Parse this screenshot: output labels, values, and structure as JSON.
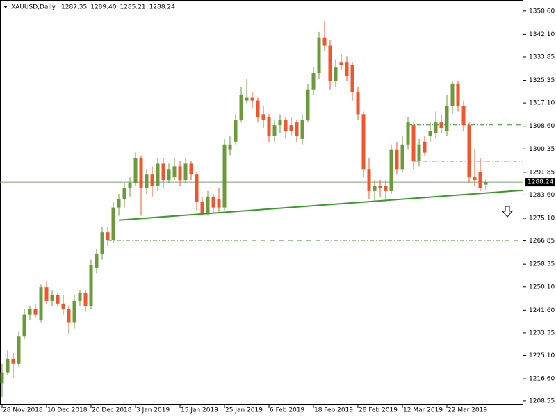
{
  "chart_data": {
    "type": "candlestick",
    "symbol": "XAUUSD,Daily",
    "header_values": [
      "1287.35",
      "1289.40",
      "1285.21",
      "1288.24"
    ],
    "categories": [
      "28 Nov 2018",
      null,
      null,
      null,
      null,
      null,
      null,
      null,
      "10 Dec 2018",
      null,
      null,
      null,
      null,
      null,
      null,
      null,
      "20 Dec 2018",
      null,
      null,
      null,
      null,
      null,
      null,
      null,
      "3 Jan 2019",
      null,
      null,
      null,
      null,
      null,
      null,
      null,
      "15 Jan 2019",
      null,
      null,
      null,
      null,
      null,
      null,
      null,
      "25 Jan 2019",
      null,
      null,
      null,
      null,
      null,
      null,
      null,
      "6 Feb 2019",
      null,
      null,
      null,
      null,
      null,
      null,
      null,
      "18 Feb 2019",
      null,
      null,
      null,
      null,
      null,
      null,
      null,
      "28 Feb 2019",
      null,
      null,
      null,
      null,
      null,
      null,
      null,
      "12 Mar 2019",
      null,
      null,
      null,
      null,
      null,
      null,
      null,
      "22 Mar 2019",
      null,
      null,
      null,
      null,
      null,
      null,
      null
    ],
    "open": [
      1215,
      1219,
      1224,
      1222,
      1232,
      1240,
      1242,
      1238,
      1250,
      1245,
      1247,
      1244,
      1242,
      1237,
      1245,
      1248,
      1243,
      1257,
      1262,
      1270,
      1267,
      1279,
      1282,
      1286,
      1288,
      1297,
      1286,
      1291,
      1287,
      1295,
      1289,
      1290,
      1294,
      1289,
      1295,
      1291,
      1281,
      1277,
      1283,
      1282,
      1279,
      1300,
      1303,
      1311,
      1318,
      1319,
      1318,
      1313,
      1312,
      1305,
      1309,
      1311,
      1309,
      1310,
      1304,
      1311,
      1322,
      1328,
      1341,
      1338,
      1325,
      1332,
      1332,
      1331,
      1321,
      1313,
      1293,
      1285,
      1287,
      1287,
      1285,
      1300,
      1293,
      1302,
      1309,
      1296,
      1303,
      1305,
      1306,
      1310,
      1307,
      1316,
      1324,
      1316,
      1309,
      1290,
      1292,
      1287.35
    ],
    "high": [
      1222,
      1227,
      1226,
      1234,
      1242,
      1243,
      1244,
      1251,
      1252,
      1249,
      1248,
      1247,
      1243,
      1247,
      1249,
      1249,
      1260,
      1264,
      1272,
      1272,
      1281,
      1284,
      1288,
      1290,
      1299,
      1298,
      1293,
      1294,
      1297,
      1297,
      1295,
      1297,
      1296,
      1297,
      1296,
      1292,
      1283,
      1285,
      1284,
      1286,
      1304,
      1305,
      1313,
      1323,
      1326,
      1321,
      1319,
      1316,
      1313,
      1311,
      1313,
      1312,
      1312,
      1311,
      1313,
      1324,
      1330,
      1343,
      1347,
      1340,
      1333,
      1335,
      1334,
      1332,
      1323,
      1314,
      1297,
      1289,
      1289,
      1289,
      1302,
      1303,
      1305,
      1312,
      1310,
      1304,
      1305,
      1310,
      1314,
      1313,
      1320,
      1325,
      1325,
      1318,
      1310,
      1300,
      1297,
      1289.4
    ],
    "low": [
      1210,
      1218,
      1217,
      1221,
      1231,
      1238,
      1239,
      1237,
      1244,
      1243,
      1243,
      1240,
      1233,
      1235,
      1243,
      1241,
      1242,
      1255,
      1260,
      1265,
      1266,
      1276,
      1279,
      1283,
      1287,
      1276,
      1284,
      1283,
      1285,
      1286,
      1288,
      1289,
      1287,
      1288,
      1289,
      1278,
      1276,
      1276,
      1277,
      1277,
      1278,
      1298,
      1302,
      1310,
      1317,
      1315,
      1310,
      1308,
      1303,
      1303,
      1306,
      1304,
      1305,
      1303,
      1302,
      1310,
      1320,
      1326,
      1336,
      1322,
      1323,
      1329,
      1325,
      1318,
      1311,
      1290,
      1282,
      1281,
      1283,
      1281,
      1284,
      1291,
      1292,
      1300,
      1293,
      1294,
      1298,
      1303,
      1304,
      1306,
      1305,
      1313,
      1314,
      1307,
      1288,
      1287,
      1285,
      1285.21
    ],
    "close": [
      1219,
      1224,
      1222,
      1232,
      1240,
      1242,
      1240,
      1250,
      1245,
      1247,
      1244,
      1242,
      1237,
      1245,
      1248,
      1243,
      1258,
      1262,
      1270,
      1267,
      1279,
      1282,
      1286,
      1288,
      1297,
      1286,
      1291,
      1287,
      1295,
      1289,
      1293,
      1294,
      1289,
      1295,
      1291,
      1281,
      1277,
      1283,
      1279,
      1279,
      1302,
      1302,
      1311,
      1320,
      1319,
      1318,
      1312,
      1311,
      1305,
      1309,
      1311,
      1307,
      1307,
      1305,
      1311,
      1322,
      1328,
      1341,
      1338,
      1325,
      1330,
      1331,
      1327,
      1321,
      1313,
      1293,
      1285,
      1287,
      1286,
      1285,
      1300,
      1293,
      1302,
      1310,
      1296,
      1302,
      1299,
      1307,
      1310,
      1308,
      1316,
      1324,
      1316,
      1309,
      1290,
      1289,
      1286,
      1288.24
    ],
    "up_color": "#6b9a3a",
    "down_color": "#f0552b",
    "last_price": 1288.24,
    "trendline": {
      "x": [
        21,
        93.7
      ],
      "y": [
        1274.4,
        1285.3
      ],
      "color": "#3a9a2a"
    },
    "levels": [
      {
        "value": 1309.1,
        "from": 73
      },
      {
        "value": 1295.9,
        "from": 74
      },
      {
        "value": 1267.0,
        "from": 19
      }
    ],
    "ylim": [
      1207.0,
      1354.6
    ],
    "yticks": [
      {
        "value": 1350.6,
        "label": "1350.60"
      },
      {
        "value": 1342.1,
        "label": "1342.10"
      },
      {
        "value": 1333.85,
        "label": "1333.85"
      },
      {
        "value": 1325.35,
        "label": "1325.35"
      },
      {
        "value": 1317.1,
        "label": "1317.10"
      },
      {
        "value": 1308.6,
        "label": "1308.60"
      },
      {
        "value": 1300.35,
        "label": "1300.35"
      },
      {
        "value": 1291.85,
        "label": "1291.85"
      },
      {
        "value": 1283.6,
        "label": "1283.60"
      },
      {
        "value": 1275.1,
        "label": "1275.10"
      },
      {
        "value": 1266.85,
        "label": "1266.85"
      },
      {
        "value": 1258.35,
        "label": "1258.35"
      },
      {
        "value": 1250.1,
        "label": "1250.10"
      },
      {
        "value": 1241.6,
        "label": "1241.60"
      },
      {
        "value": 1233.35,
        "label": "1233.35"
      },
      {
        "value": 1225.1,
        "label": "1225.10"
      },
      {
        "value": 1216.6,
        "label": "1216.60"
      },
      {
        "value": 1208.55,
        "label": "1208.55"
      }
    ]
  }
}
